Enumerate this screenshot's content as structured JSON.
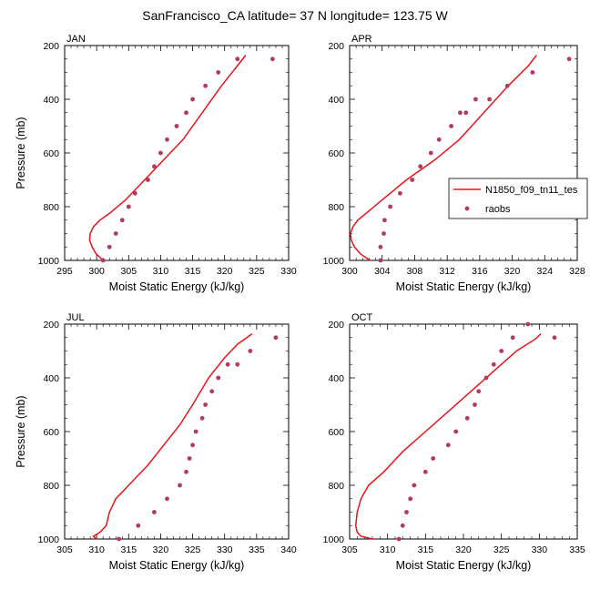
{
  "title": "SanFrancisco_CA  latitude= 37 N longitude= 123.75 W",
  "legend": {
    "model_label": "N1850_f09_tn11_tes",
    "obs_label": "raobs",
    "model_color": "#e8141a",
    "obs_color": "#b23a5e"
  },
  "chart_data": [
    {
      "type": "line",
      "panel": "JAN",
      "xlabel": "Moist Static Energy (kJ/kg)",
      "ylabel": "Pressure (mb)",
      "xlim": [
        295,
        330
      ],
      "ylim": [
        1000,
        200
      ],
      "xticks": [
        295,
        300,
        305,
        310,
        315,
        320,
        325,
        330
      ],
      "yticks": [
        200,
        400,
        600,
        800,
        1000
      ],
      "model": {
        "name": "N1850_f09_tn11_tes",
        "x": [
          301.0,
          299.9,
          299.3,
          298.9,
          299.0,
          299.5,
          300.5,
          302.0,
          304.5,
          307.5,
          310.5,
          313.5,
          316.5,
          319.5,
          322.0,
          323.3
        ],
        "y": [
          1000,
          975,
          950,
          925,
          900,
          875,
          850,
          825,
          775,
          700,
          625,
          550,
          450,
          350,
          275,
          236
        ]
      },
      "raobs": {
        "name": "raobs",
        "x": [
          301.0,
          302.0,
          303.0,
          304.0,
          305.0,
          306.0,
          308.0,
          309.0,
          310.0,
          311.0,
          312.5,
          314.0,
          315.0,
          317.0,
          319.0,
          322.0,
          327.5
        ],
        "y": [
          1000,
          950,
          900,
          850,
          800,
          750,
          700,
          650,
          600,
          550,
          500,
          450,
          400,
          350,
          300,
          250,
          250
        ]
      }
    },
    {
      "type": "line",
      "panel": "APR",
      "xlabel": "Moist Static Energy (kJ/kg)",
      "ylabel": "",
      "xlim": [
        300,
        328
      ],
      "ylim": [
        1000,
        200
      ],
      "xticks": [
        300,
        304,
        308,
        312,
        316,
        320,
        324,
        328
      ],
      "yticks": [
        200,
        400,
        600,
        800,
        1000
      ],
      "model": {
        "name": "N1850_f09_tn11_tes",
        "x": [
          302.5,
          301.3,
          300.6,
          300.2,
          300.1,
          300.4,
          301.0,
          302.0,
          304.0,
          307.0,
          310.5,
          313.5,
          316.5,
          319.5,
          322.0,
          323.0
        ],
        "y": [
          1000,
          975,
          950,
          925,
          900,
          875,
          850,
          825,
          775,
          700,
          625,
          550,
          450,
          350,
          275,
          236
        ]
      },
      "raobs": {
        "name": "raobs",
        "x": [
          303.8,
          303.8,
          304.2,
          304.3,
          305.0,
          306.2,
          307.7,
          308.7,
          310.0,
          311.0,
          312.5,
          313.6,
          314.3,
          315.5,
          317.2,
          319.4,
          322.5,
          327.0
        ],
        "y": [
          1000,
          950,
          900,
          850,
          800,
          750,
          700,
          650,
          600,
          550,
          500,
          450,
          450,
          400,
          400,
          350,
          300,
          250
        ]
      }
    },
    {
      "type": "line",
      "panel": "JUL",
      "xlabel": "Moist Static Energy (kJ/kg)",
      "ylabel": "Pressure (mb)",
      "xlim": [
        305,
        340
      ],
      "ylim": [
        1000,
        200
      ],
      "xticks": [
        305,
        310,
        315,
        320,
        325,
        330,
        335,
        340
      ],
      "yticks": [
        200,
        400,
        600,
        800,
        1000
      ],
      "model": {
        "name": "N1850_f09_tn11_tes",
        "x": [
          310.0,
          309.5,
          310.5,
          311.5,
          312.0,
          313.0,
          315.0,
          318.0,
          320.5,
          323.0,
          325.0,
          327.5,
          330.0,
          332.0,
          334.3
        ],
        "y": [
          1000,
          990,
          975,
          950,
          900,
          850,
          800,
          725,
          650,
          575,
          500,
          400,
          325,
          275,
          236
        ]
      },
      "raobs": {
        "name": "raobs",
        "x": [
          313.5,
          316.5,
          319.0,
          321.0,
          323.0,
          324.0,
          324.5,
          325.0,
          325.5,
          326.5,
          327.0,
          328.0,
          329.0,
          330.5,
          332.0,
          334.0,
          338.0
        ],
        "y": [
          1000,
          950,
          900,
          850,
          800,
          750,
          700,
          650,
          600,
          550,
          500,
          450,
          400,
          350,
          350,
          300,
          250
        ]
      }
    },
    {
      "type": "line",
      "panel": "OCT",
      "xlabel": "Moist Static Energy (kJ/kg)",
      "ylabel": "",
      "xlim": [
        305,
        335
      ],
      "ylim": [
        1000,
        200
      ],
      "xticks": [
        305,
        310,
        315,
        320,
        325,
        330,
        335
      ],
      "yticks": [
        200,
        400,
        600,
        800,
        1000
      ],
      "model": {
        "name": "N1850_f09_tn11_tes",
        "x": [
          308.0,
          306.5,
          306.0,
          305.8,
          306.0,
          306.5,
          307.5,
          309.5,
          312.0,
          315.0,
          318.0,
          321.0,
          324.0,
          327.0,
          329.5,
          330.2
        ],
        "y": [
          1000,
          990,
          975,
          950,
          900,
          850,
          800,
          750,
          675,
          600,
          525,
          450,
          375,
          300,
          255,
          236
        ]
      },
      "raobs": {
        "name": "raobs",
        "x": [
          311.5,
          312.0,
          312.5,
          313.0,
          313.5,
          315.0,
          316.0,
          318.0,
          319.0,
          320.5,
          321.5,
          322.0,
          323.0,
          324.0,
          325.0,
          326.5,
          328.5,
          332.0
        ],
        "y": [
          1000,
          950,
          900,
          850,
          800,
          750,
          700,
          650,
          600,
          550,
          500,
          450,
          400,
          350,
          300,
          250,
          200,
          250
        ]
      }
    }
  ]
}
